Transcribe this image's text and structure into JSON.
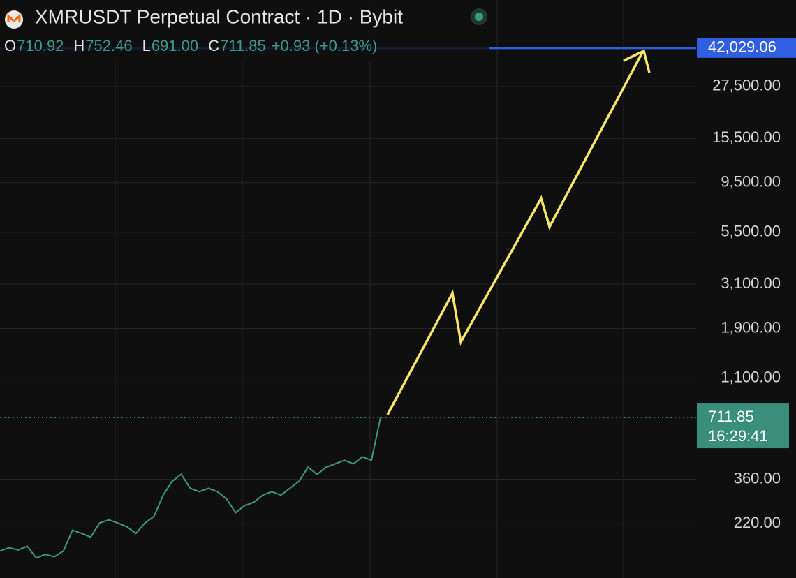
{
  "chart_data": {
    "type": "line",
    "title": "XMRUSDT Perpetual Contract · 1D · Bybit",
    "ohlc": [
      {
        "key": "O",
        "value": "710.92"
      },
      {
        "key": "H",
        "value": "752.46"
      },
      {
        "key": "L",
        "value": "691.00"
      },
      {
        "key": "C",
        "value": "711.85"
      }
    ],
    "change": "+0.93 (+0.13%)",
    "log_scale": true,
    "grid": true,
    "ylim": [
      121,
      71450
    ],
    "yticks": [
      {
        "value": 220,
        "label": "220.00"
      },
      {
        "value": 360,
        "label": "360.00"
      },
      {
        "value": 1100,
        "label": "1,100.00"
      },
      {
        "value": 1900,
        "label": "1,900.00"
      },
      {
        "value": 3100,
        "label": "3,100.00"
      },
      {
        "value": 5500,
        "label": "5,500.00"
      },
      {
        "value": 9500,
        "label": "9,500.00"
      },
      {
        "value": 15500,
        "label": "15,500.00"
      },
      {
        "value": 27500,
        "label": "27,500.00"
      }
    ],
    "categories": [
      null,
      null,
      null,
      null,
      null,
      null,
      null,
      null,
      null,
      null,
      null,
      null,
      null,
      null,
      null,
      null,
      null,
      null,
      null,
      null,
      null,
      null,
      null,
      null,
      null,
      null,
      null,
      null,
      null,
      null,
      null,
      null,
      null,
      null,
      null,
      null,
      null,
      null,
      null,
      null,
      null,
      null,
      null
    ],
    "series": [
      {
        "name": "XMRUSDT",
        "color": "#3f9a83",
        "values": [
          163,
          169,
          165,
          172,
          151,
          157,
          153,
          163,
          205,
          198,
          190,
          222,
          230,
          222,
          213,
          198,
          222,
          239,
          302,
          352,
          380,
          326,
          314,
          326,
          314,
          290,
          249,
          269,
          279,
          302,
          314,
          302,
          326,
          352,
          411,
          380,
          411,
          427,
          444,
          427,
          461,
          444,
          711.85
        ]
      }
    ],
    "current_price": {
      "value": 711.85,
      "label": "711.85",
      "countdown": "16:29:41",
      "color": "#3a8f7a"
    },
    "alert_line": {
      "value": 42029.06,
      "label": "42,029.06",
      "color": "#2f5fe0"
    }
  }
}
